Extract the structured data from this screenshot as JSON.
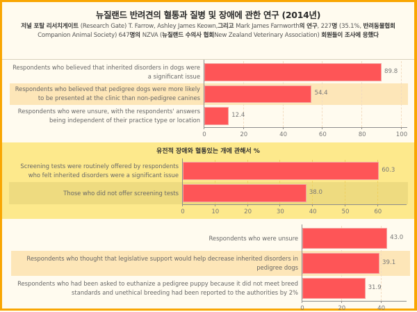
{
  "header": {
    "title": "뉴질랜드 반려견의 혈통과 질병 및 장애에 관한 연구 (2014년)",
    "subtitle_parts": [
      {
        "text": "저널 포탈 리서치게이트 ",
        "bold": true
      },
      {
        "text": "(Research Gate) T. Farrow, Ashley James Keown,",
        "bold": false
      },
      {
        "text": "그리고 ",
        "bold": true
      },
      {
        "text": "Mark James Farnworth",
        "bold": false
      },
      {
        "text": "의 연구",
        "bold": true
      },
      {
        "text": ", 227",
        "bold": false
      },
      {
        "text": "명 ",
        "bold": true
      },
      {
        "text": "(35.1%, ",
        "bold": false
      },
      {
        "text": "반려동물협회 ",
        "bold": true
      },
      {
        "text": "Companion Animal Society) 647",
        "bold": false
      },
      {
        "text": "명의 ",
        "bold": true
      },
      {
        "text": "NZVA (",
        "bold": false
      },
      {
        "text": "뉴질랜드 수의사 협회",
        "bold": true
      },
      {
        "text": "New Zealand Veterinary Association) ",
        "bold": false
      },
      {
        "text": "회원들이 조사에 응했다",
        "bold": true
      }
    ]
  },
  "colors": {
    "border": "#f9a602",
    "background": "#fffbef",
    "panel2_background": "#fde98c",
    "highlight_row": "#fde6b8",
    "highlight_row_panel2": "#eedb80",
    "bar": "#fe5557"
  },
  "chart_data": [
    {
      "type": "bar",
      "orientation": "horizontal",
      "title": "",
      "categories": [
        "Respondents who believed that inherited disorders in dogs were a significant issue",
        "Respondents who believed that pedigree dogs were more likely to be presented at the clinic than non-pedigree canines",
        "Respondents who were unsure, with the respondents' answers being independent of their practice type or location"
      ],
      "values": [
        89.8,
        54.4,
        12.4
      ],
      "value_labels": [
        "89.8",
        "54.4",
        "12.4"
      ],
      "xticks": [
        "0",
        "20",
        "40",
        "60",
        "80",
        "100"
      ],
      "xlim": [
        0,
        103
      ],
      "highlighted_index": 1,
      "grid": true
    },
    {
      "type": "bar",
      "orientation": "horizontal",
      "title": "유전적 장애와 혈통있는 개에 관해서 %",
      "categories": [
        "Screening tests were routinely offered by respondents who felt inherited disorders were a significant issue",
        "Those who did not offer screening tests"
      ],
      "values": [
        60.3,
        38.0
      ],
      "value_labels": [
        "60.3",
        "38.0"
      ],
      "xticks": [
        "0",
        "10",
        "20",
        "30",
        "40",
        "50",
        "60"
      ],
      "xlim": [
        0,
        69
      ],
      "highlighted_index": 1,
      "grid": true
    },
    {
      "type": "bar",
      "orientation": "horizontal",
      "title": "",
      "categories": [
        "Respondents who were unsure",
        "Respondents who thought that legislative support would help decrease inherited disorders in pedigree dogs",
        "Respondents who had been asked to euthanize a pedigree puppy because it did not meet breed standards and unethical breeding had been reported to the authorities by 2%"
      ],
      "values": [
        43.0,
        39.1,
        31.9
      ],
      "value_labels": [
        "43.0",
        "39.1",
        "31.9"
      ],
      "xticks": [
        "0",
        "20",
        "40"
      ],
      "xlim": [
        0,
        53
      ],
      "highlighted_index": 1,
      "grid": true
    }
  ],
  "panels": {
    "p1": {
      "labels": [
        [
          "Respondents who believed that inherited disorders in dogs were",
          "a significant issue"
        ],
        [
          "Respondents who believed that pedigree dogs were more likely",
          "to be presented at the clinic than non-pedigree canines"
        ],
        [
          "Respondents who were unsure, with the respondents' answers",
          "being independent of their practice type or location"
        ]
      ]
    },
    "p2": {
      "labels": [
        [
          "Screening tests were routinely offered by respondents",
          "who felt inherited disorders were a significant issue"
        ],
        [
          "Those who did not offer screening tests"
        ]
      ]
    },
    "p3": {
      "labels": [
        [
          "Respondents who were unsure"
        ],
        [
          "Respondents who thought that legislative support would help decrease inherited disorders in",
          "pedigree dogs"
        ],
        [
          "Respondents who had been asked to euthanize a pedigree puppy because it did not meet breed",
          "standards and unethical breeding had been reported to the authorities by 2%"
        ]
      ]
    }
  }
}
